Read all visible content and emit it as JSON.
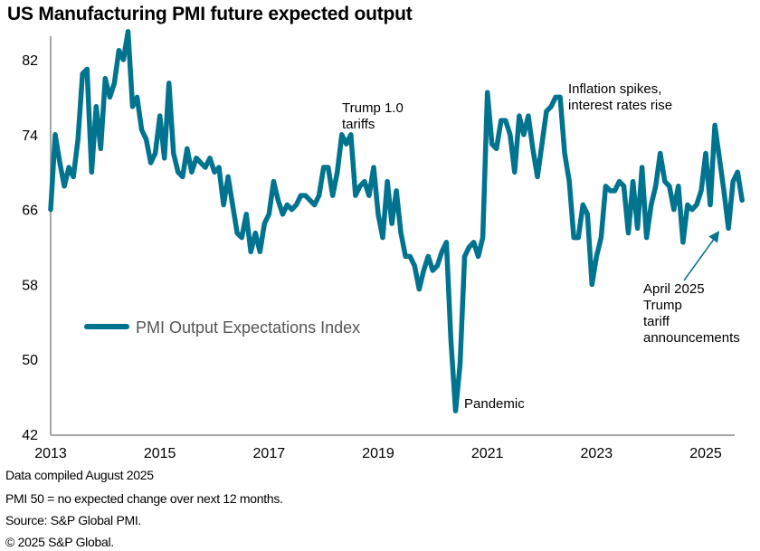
{
  "title": "US Manufacturing PMI future expected output",
  "footer": {
    "line1": "Data compiled August 2025",
    "line2": "PMI 50 =  no expected change over next 12 months.",
    "line3": "Source: S&P Global PMI.",
    "line4": "© 2025 S&P Global."
  },
  "colors": {
    "series": "#00738f",
    "axis": "#a6a6a6",
    "legend_text": "#595959"
  },
  "chart_data": {
    "type": "line",
    "title": "US Manufacturing PMI future expected output",
    "xlabel": "",
    "ylabel": "",
    "ylim": [
      42,
      86
    ],
    "yticks": [
      42,
      50,
      58,
      66,
      74,
      82
    ],
    "xticks": [
      "2013",
      "2015",
      "2017",
      "2019",
      "2021",
      "2023",
      "2025"
    ],
    "xrange": [
      2013.0,
      2025.55
    ],
    "grid": false,
    "legend": {
      "position": "middle-left",
      "entries": [
        "PMI Output Expectations Index"
      ]
    },
    "x_start": "2013-01",
    "frequency": "monthly",
    "series": [
      {
        "name": "PMI Output Expectations Index",
        "values": [
          66.0,
          74.0,
          71.0,
          68.5,
          70.5,
          69.5,
          73.5,
          80.5,
          81.0,
          70.0,
          77.0,
          72.5,
          80.0,
          78.0,
          79.5,
          83.0,
          82.0,
          85.0,
          77.0,
          78.0,
          74.5,
          73.5,
          71.0,
          72.0,
          76.0,
          71.5,
          79.5,
          72.0,
          70.0,
          69.5,
          72.5,
          70.0,
          71.5,
          71.0,
          70.5,
          71.5,
          70.0,
          70.5,
          66.5,
          69.5,
          66.5,
          63.5,
          63.0,
          65.5,
          61.5,
          63.5,
          61.5,
          64.5,
          65.5,
          69.0,
          67.0,
          65.5,
          66.5,
          66.0,
          66.5,
          67.5,
          67.5,
          67.0,
          66.5,
          67.5,
          70.5,
          70.5,
          67.5,
          70.0,
          74.0,
          73.0,
          74.0,
          67.5,
          68.5,
          69.0,
          67.5,
          70.5,
          65.5,
          63.0,
          69.0,
          64.5,
          68.0,
          63.5,
          61.0,
          61.0,
          60.0,
          57.5,
          59.5,
          61.0,
          59.5,
          60.0,
          61.5,
          62.5,
          52.0,
          44.5,
          49.5,
          61.0,
          62.0,
          62.5,
          61.0,
          63.0,
          78.5,
          73.0,
          72.5,
          75.5,
          75.5,
          74.0,
          70.0,
          76.0,
          74.0,
          76.0,
          72.5,
          69.5,
          73.0,
          76.5,
          77.0,
          78.0,
          78.0,
          72.0,
          69.0,
          63.0,
          63.0,
          66.5,
          65.5,
          58.0,
          61.0,
          63.0,
          68.5,
          68.0,
          68.0,
          69.0,
          68.5,
          63.5,
          69.0,
          64.0,
          70.5,
          63.0,
          66.5,
          68.5,
          72.0,
          69.0,
          68.5,
          66.0,
          68.5,
          62.5,
          66.5,
          66.0,
          66.5,
          68.0,
          72.0,
          66.5,
          75.0,
          71.5,
          68.0,
          64.0,
          69.0,
          70.0,
          67.0
        ]
      }
    ],
    "annotations": [
      {
        "text": [
          "Trump 1.0",
          "tariffs"
        ],
        "x": 2018.3,
        "y": 77.5
      },
      {
        "text": [
          "Inflation  spikes,",
          "interest rates rise"
        ],
        "x": 2022.2,
        "y": 80.5
      },
      {
        "text": [
          "Pandemic"
        ],
        "x": 2020.6,
        "y": 45.5
      },
      {
        "text": [
          "April 2025",
          "Trump",
          "tariff",
          "announcements"
        ],
        "x": 2024.2,
        "y": 58.5,
        "arrow_to": {
          "x": 2025.25,
          "y": 64.5
        }
      }
    ]
  }
}
